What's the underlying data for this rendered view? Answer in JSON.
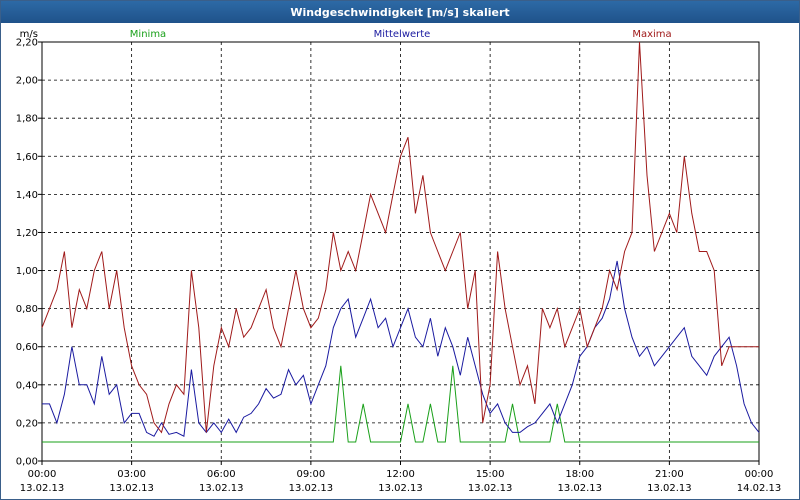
{
  "window": {
    "title": "Windgeschwindigkeit [m/s] skaliert"
  },
  "chart_data": {
    "type": "line",
    "title": "Windgeschwindigkeit [m/s] skaliert",
    "ylabel": "m/s",
    "ylim": [
      0,
      2.2
    ],
    "xlim": [
      0,
      96
    ],
    "grid": true,
    "legend_position": "top",
    "y_ticks": [
      "0,00",
      "0,20",
      "0,40",
      "0,60",
      "0,80",
      "1,00",
      "1,20",
      "1,40",
      "1,60",
      "1,80",
      "2,00",
      "2,20"
    ],
    "x_ticks": [
      {
        "time": "00:00",
        "date": "13.02.13"
      },
      {
        "time": "03:00",
        "date": "13.02.13"
      },
      {
        "time": "06:00",
        "date": "13.02.13"
      },
      {
        "time": "09:00",
        "date": "13.02.13"
      },
      {
        "time": "12:00",
        "date": "13.02.13"
      },
      {
        "time": "15:00",
        "date": "13.02.13"
      },
      {
        "time": "18:00",
        "date": "13.02.13"
      },
      {
        "time": "21:00",
        "date": "13.02.13"
      },
      {
        "time": "00:00",
        "date": "14.02.13"
      }
    ],
    "series": [
      {
        "name": "Minima",
        "color": "#1aa01a",
        "x": [
          0,
          38,
          39,
          40,
          41,
          42,
          43,
          44,
          45,
          46,
          47,
          48,
          49,
          50,
          51,
          52,
          53,
          54,
          55,
          56,
          57,
          58,
          59,
          60,
          61,
          62,
          63,
          64,
          65,
          66,
          67,
          68,
          69,
          70,
          71,
          72,
          73,
          74,
          75,
          76,
          77,
          78,
          79,
          80,
          81,
          82,
          83,
          84,
          85,
          86,
          87,
          88,
          89,
          90,
          91,
          92,
          93,
          94,
          95,
          96
        ],
        "y": [
          0.1,
          0.1,
          0.1,
          0.5,
          0.1,
          0.1,
          0.3,
          0.1,
          0.1,
          0.1,
          0.1,
          0.1,
          0.3,
          0.1,
          0.1,
          0.3,
          0.1,
          0.1,
          0.5,
          0.1,
          0.1,
          0.1,
          0.1,
          0.1,
          0.1,
          0.1,
          0.3,
          0.1,
          0.1,
          0.1,
          0.1,
          0.1,
          0.3,
          0.1,
          0.1,
          0.1,
          0.1,
          0.1,
          0.1,
          0.1,
          0.1,
          0.1,
          0.1,
          0.1,
          0.1,
          0.1,
          0.1,
          0.1,
          0.1,
          0.1,
          0.1,
          0.1,
          0.1,
          0.1,
          0.1,
          0.1,
          0.1,
          0.1,
          0.1,
          0.1
        ]
      },
      {
        "name": "Mittelwerte",
        "color": "#1a1aa0",
        "x": [
          0,
          1,
          2,
          3,
          4,
          5,
          6,
          7,
          8,
          9,
          10,
          11,
          12,
          13,
          14,
          15,
          16,
          17,
          18,
          19,
          20,
          21,
          22,
          23,
          24,
          25,
          26,
          27,
          28,
          29,
          30,
          31,
          32,
          33,
          34,
          35,
          36,
          37,
          38,
          39,
          40,
          41,
          42,
          43,
          44,
          45,
          46,
          47,
          48,
          49,
          50,
          51,
          52,
          53,
          54,
          55,
          56,
          57,
          58,
          59,
          60,
          61,
          62,
          63,
          64,
          65,
          66,
          67,
          68,
          69,
          70,
          71,
          72,
          73,
          74,
          75,
          76,
          77,
          78,
          79,
          80,
          81,
          82,
          83,
          84,
          85,
          86,
          87,
          88,
          89,
          90,
          91,
          92,
          93,
          94,
          95,
          96
        ],
        "y": [
          0.3,
          0.3,
          0.2,
          0.35,
          0.6,
          0.4,
          0.4,
          0.3,
          0.55,
          0.35,
          0.4,
          0.2,
          0.25,
          0.25,
          0.15,
          0.13,
          0.2,
          0.14,
          0.15,
          0.13,
          0.48,
          0.2,
          0.15,
          0.2,
          0.15,
          0.22,
          0.15,
          0.23,
          0.25,
          0.3,
          0.38,
          0.33,
          0.35,
          0.48,
          0.4,
          0.45,
          0.3,
          0.4,
          0.5,
          0.7,
          0.8,
          0.85,
          0.65,
          0.75,
          0.85,
          0.7,
          0.75,
          0.6,
          0.7,
          0.8,
          0.65,
          0.6,
          0.75,
          0.55,
          0.7,
          0.6,
          0.45,
          0.65,
          0.5,
          0.35,
          0.25,
          0.3,
          0.2,
          0.15,
          0.15,
          0.18,
          0.2,
          0.25,
          0.3,
          0.2,
          0.3,
          0.4,
          0.55,
          0.6,
          0.7,
          0.75,
          0.85,
          1.05,
          0.8,
          0.65,
          0.55,
          0.6,
          0.5,
          0.55,
          0.6,
          0.65,
          0.7,
          0.55,
          0.5,
          0.45,
          0.55,
          0.6,
          0.65,
          0.5,
          0.3,
          0.2,
          0.15
        ]
      },
      {
        "name": "Maxima",
        "color": "#a01a1a",
        "x": [
          0,
          1,
          2,
          3,
          4,
          5,
          6,
          7,
          8,
          9,
          10,
          11,
          12,
          13,
          14,
          15,
          16,
          17,
          18,
          19,
          20,
          21,
          22,
          23,
          24,
          25,
          26,
          27,
          28,
          29,
          30,
          31,
          32,
          33,
          34,
          35,
          36,
          37,
          38,
          39,
          40,
          41,
          42,
          43,
          44,
          45,
          46,
          47,
          48,
          49,
          50,
          51,
          52,
          53,
          54,
          55,
          56,
          57,
          58,
          59,
          60,
          61,
          62,
          63,
          64,
          65,
          66,
          67,
          68,
          69,
          70,
          71,
          72,
          73,
          74,
          75,
          76,
          77,
          78,
          79,
          80,
          81,
          82,
          83,
          84,
          85,
          86,
          87,
          88,
          89,
          90,
          91,
          92,
          93,
          94,
          95,
          96
        ],
        "y": [
          0.7,
          0.8,
          0.9,
          1.1,
          0.7,
          0.9,
          0.8,
          1.0,
          1.1,
          0.8,
          1.0,
          0.7,
          0.5,
          0.4,
          0.35,
          0.2,
          0.15,
          0.3,
          0.4,
          0.35,
          1.0,
          0.7,
          0.15,
          0.5,
          0.7,
          0.6,
          0.8,
          0.65,
          0.7,
          0.8,
          0.9,
          0.7,
          0.6,
          0.8,
          1.0,
          0.8,
          0.7,
          0.75,
          0.9,
          1.2,
          1.0,
          1.1,
          1.0,
          1.2,
          1.4,
          1.3,
          1.2,
          1.4,
          1.6,
          1.7,
          1.3,
          1.5,
          1.2,
          1.1,
          1.0,
          1.1,
          1.2,
          0.8,
          1.0,
          0.2,
          0.4,
          1.1,
          0.8,
          0.6,
          0.4,
          0.5,
          0.3,
          0.8,
          0.7,
          0.8,
          0.6,
          0.7,
          0.8,
          0.6,
          0.7,
          0.8,
          1.0,
          0.9,
          1.1,
          1.2,
          2.2,
          1.5,
          1.1,
          1.2,
          1.3,
          1.2,
          1.6,
          1.3,
          1.1,
          1.1,
          1.0,
          0.5,
          0.6,
          0.6,
          0.6,
          0.6,
          0.6
        ]
      }
    ]
  }
}
